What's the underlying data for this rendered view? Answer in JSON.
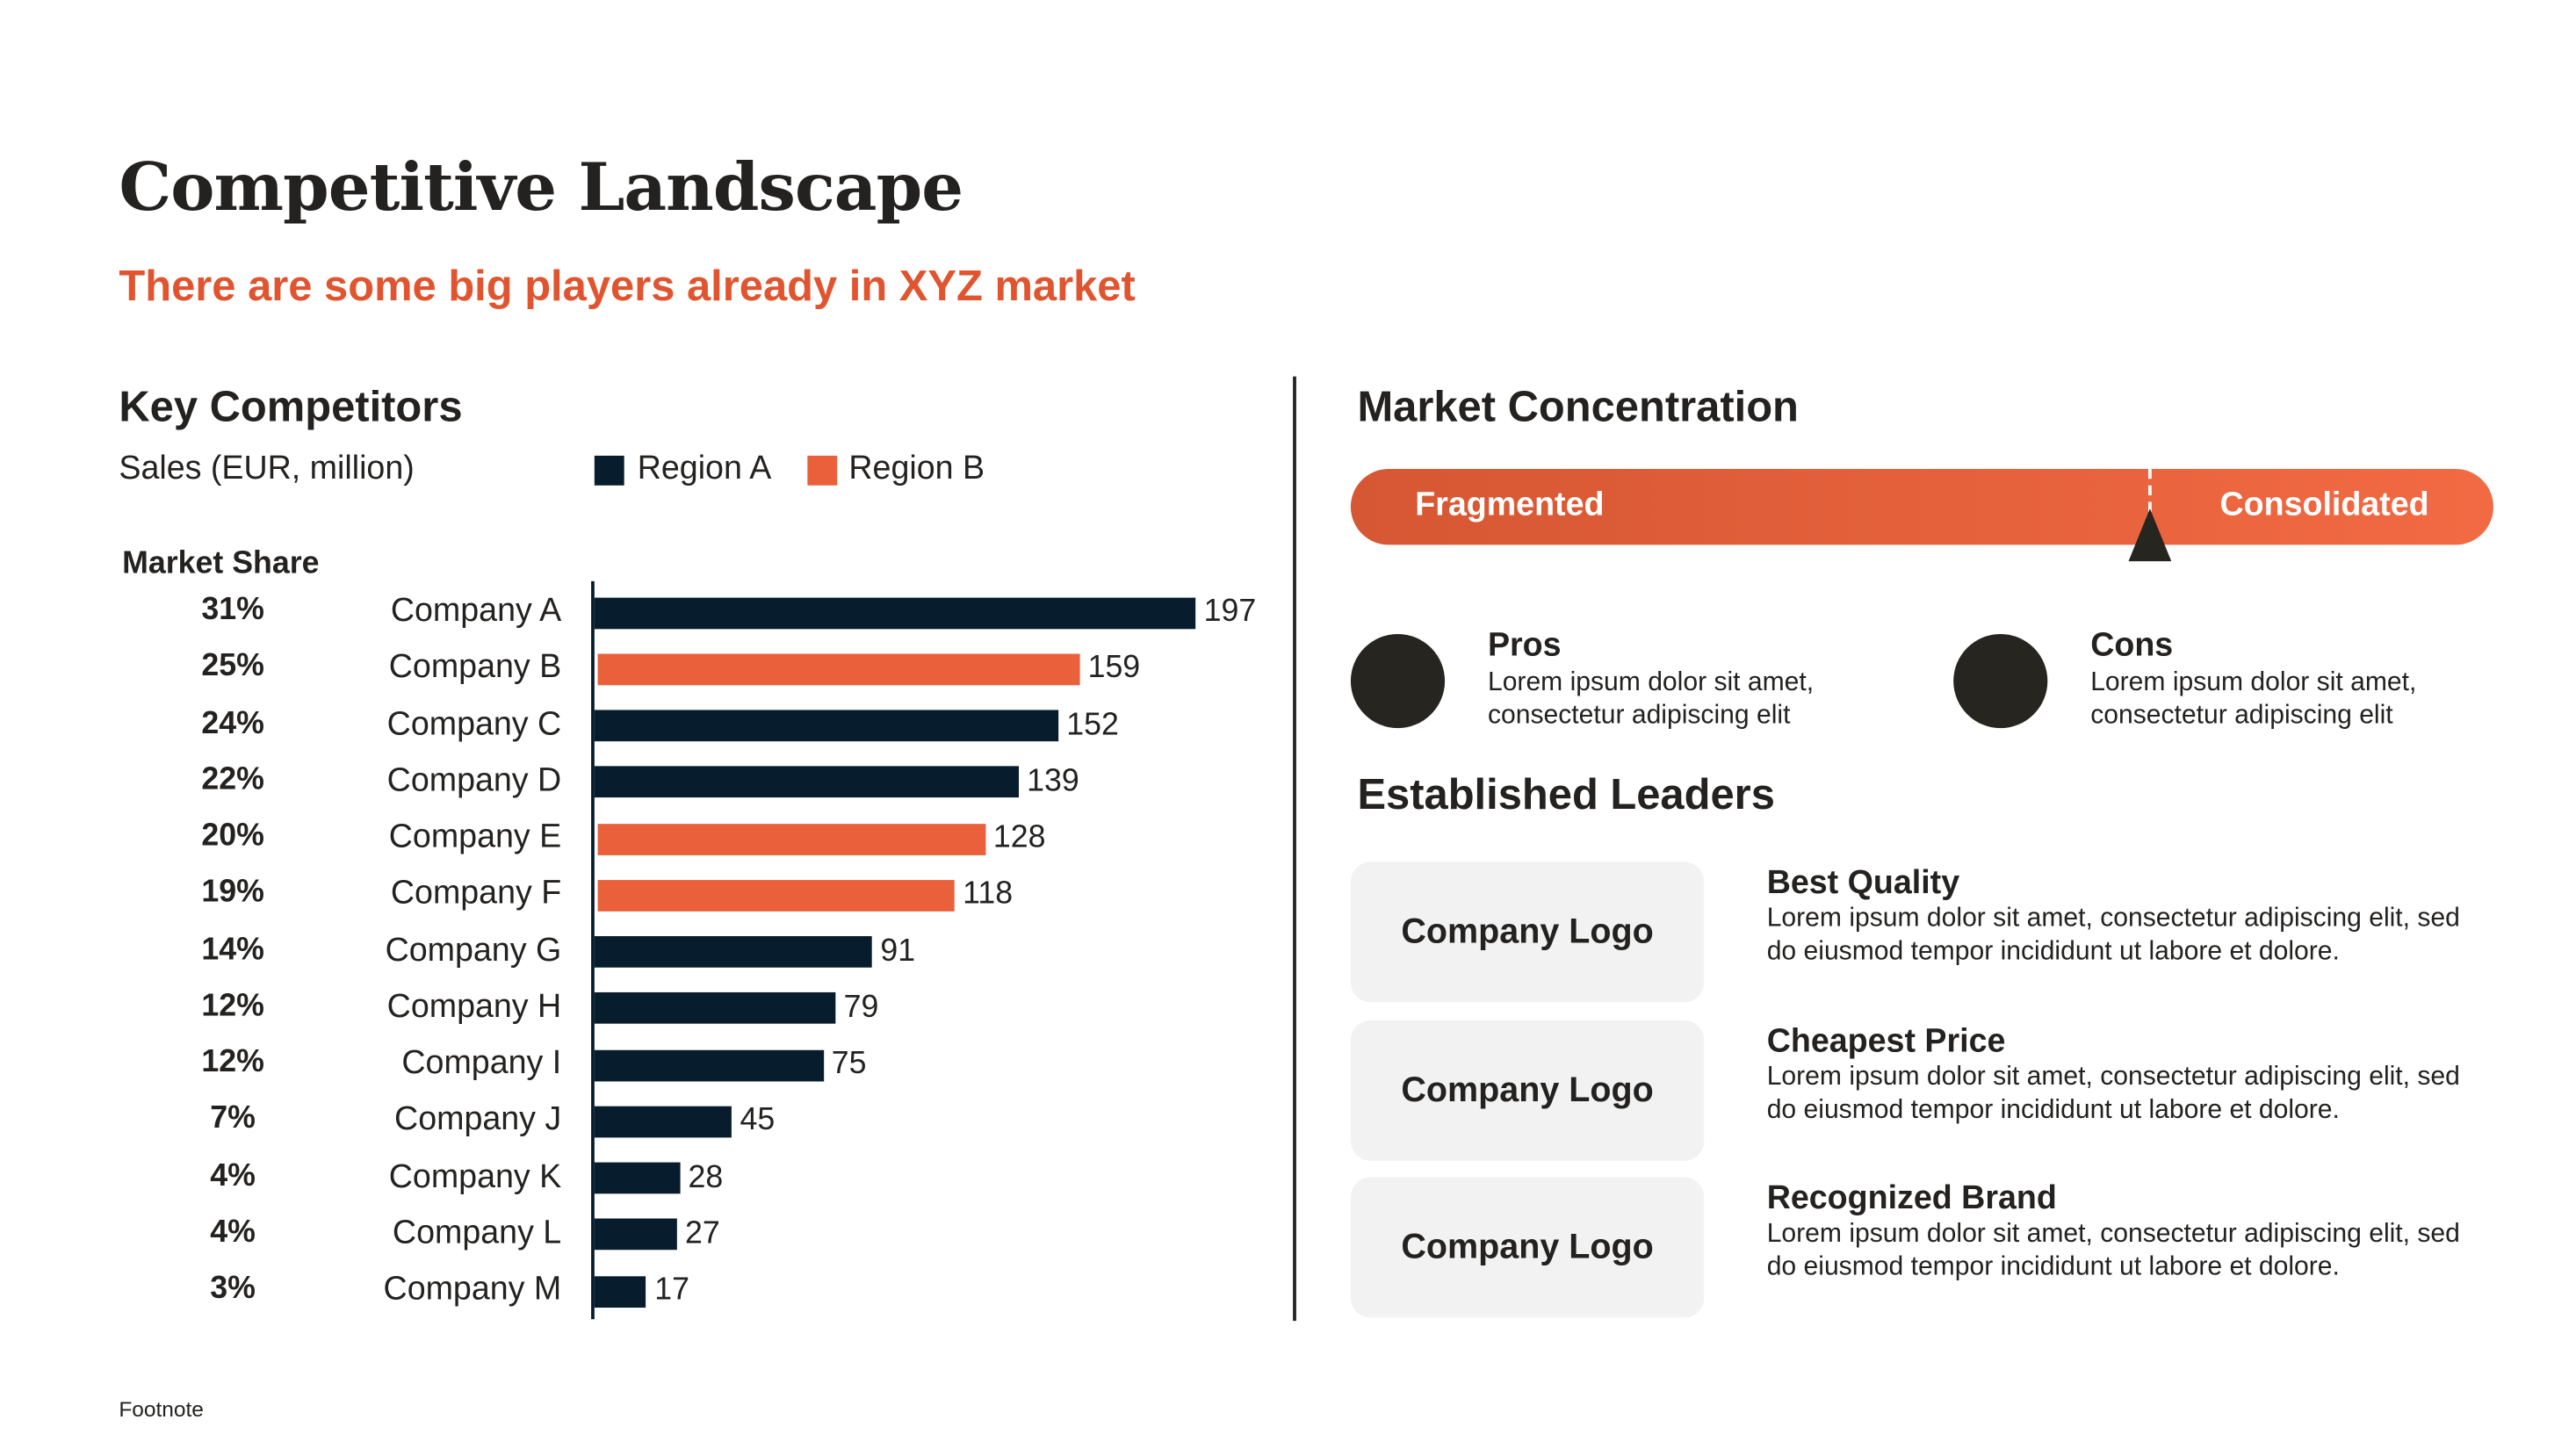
{
  "title": "Competitive Landscape",
  "subtitle": "There are some big players already in XYZ market",
  "left": {
    "heading": "Key Competitors",
    "units": "Sales (EUR, million)",
    "market_share_label": "Market Share"
  },
  "colors": {
    "region_a": "#071C2C",
    "region_b": "#E9603A",
    "accent": "#E0552F",
    "dark": "#262520"
  },
  "chart_data": {
    "type": "bar",
    "orientation": "horizontal",
    "ylabel": "Sales (EUR, million)",
    "legend": [
      {
        "name": "Region A",
        "color": "#071C2C"
      },
      {
        "name": "Region B",
        "color": "#E9603A"
      }
    ],
    "legend_placement": "top",
    "categories": [
      "Company A",
      "Company B",
      "Company C",
      "Company D",
      "Company E",
      "Company F",
      "Company G",
      "Company H",
      "Company I",
      "Company J",
      "Company K",
      "Company L",
      "Company M"
    ],
    "values": [
      197,
      159,
      152,
      139,
      128,
      118,
      91,
      79,
      75,
      45,
      28,
      27,
      17
    ],
    "region": [
      "Region A",
      "Region B",
      "Region A",
      "Region A",
      "Region B",
      "Region B",
      "Region A",
      "Region A",
      "Region A",
      "Region A",
      "Region A",
      "Region A",
      "Region A"
    ],
    "market_share": [
      "31%",
      "25%",
      "24%",
      "22%",
      "20%",
      "19%",
      "14%",
      "12%",
      "12%",
      "7%",
      "4%",
      "4%",
      "3%"
    ],
    "xlim": [
      0,
      197
    ],
    "grid": false
  },
  "right": {
    "heading": "Market Concentration",
    "scale": {
      "left_label": "Fragmented",
      "right_label": "Consolidated",
      "marker_position": 0.7
    },
    "pros": {
      "title": "Pros",
      "body": "Lorem ipsum dolor sit amet, consectetur adipiscing elit"
    },
    "cons": {
      "title": "Cons",
      "body": "Lorem ipsum dolor sit amet, consectetur adipiscing elit"
    },
    "leaders_heading": "Established Leaders",
    "leaders": [
      {
        "logo": "Company Logo",
        "title": "Best Quality",
        "body": "Lorem ipsum dolor sit amet, consectetur adipiscing elit, sed do eiusmod tempor incididunt ut labore et dolore."
      },
      {
        "logo": "Company Logo",
        "title": "Cheapest Price",
        "body": "Lorem ipsum dolor sit amet, consectetur adipiscing elit, sed do eiusmod tempor incididunt ut labore et dolore."
      },
      {
        "logo": "Company Logo",
        "title": "Recognized Brand",
        "body": "Lorem ipsum dolor sit amet, consectetur adipiscing elit, sed do eiusmod tempor incididunt ut labore et dolore."
      }
    ]
  },
  "footnote": "Footnote"
}
